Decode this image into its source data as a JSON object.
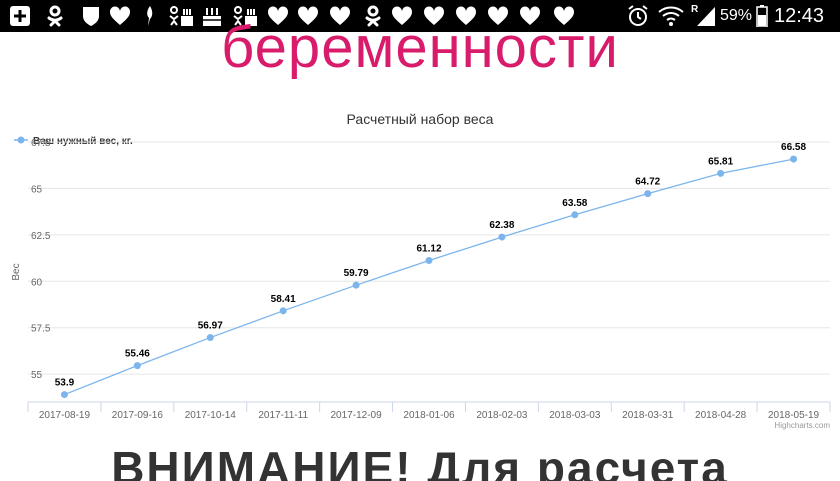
{
  "status_bar": {
    "battery": "59%",
    "time": "12:43",
    "signal_label": "R",
    "icons": [
      "plus-square-icon",
      "ok-logo-icon",
      "shield-icon",
      "heart-icon",
      "leaf-icon",
      "ok-cake-icon",
      "cake-icon",
      "ok-cake-icon",
      "heart-icon",
      "heart-icon",
      "heart-icon",
      "ok-logo-icon",
      "heart-icon",
      "heart-icon",
      "heart-icon",
      "heart-icon",
      "heart-icon",
      "alarm-icon",
      "wifi-icon",
      "signal-icon",
      "battery-icon"
    ]
  },
  "page": {
    "heading_top": "беременности",
    "heading_bottom": "ВНИМАНИЕ! Для расчета"
  },
  "chart_data": {
    "type": "line",
    "title": "Расчетный набор веса",
    "ylabel": "Вес",
    "xlabel": "",
    "legend": "top-left",
    "grid": true,
    "ylim": [
      53.5,
      67.5
    ],
    "yticks": [
      "55",
      "57.5",
      "60",
      "62.5",
      "65",
      "67.5"
    ],
    "categories": [
      "2017-08-19",
      "2017-09-16",
      "2017-10-14",
      "2017-11-11",
      "2017-12-09",
      "2018-01-06",
      "2018-02-03",
      "2018-03-03",
      "2018-03-31",
      "2018-04-28",
      "2018-05-19"
    ],
    "series": [
      {
        "name": "Ваш нужный вес, кг.",
        "color": "#7cb5ec",
        "values": [
          53.9,
          55.46,
          56.97,
          58.41,
          59.79,
          61.12,
          62.38,
          63.58,
          64.72,
          65.81,
          66.58
        ],
        "labels": [
          "53.9",
          "55.46",
          "56.97",
          "58.41",
          "59.79",
          "61.12",
          "62.38",
          "63.58",
          "64.72",
          "65.81",
          "66.58"
        ]
      }
    ],
    "credits": "Highcharts.com"
  }
}
